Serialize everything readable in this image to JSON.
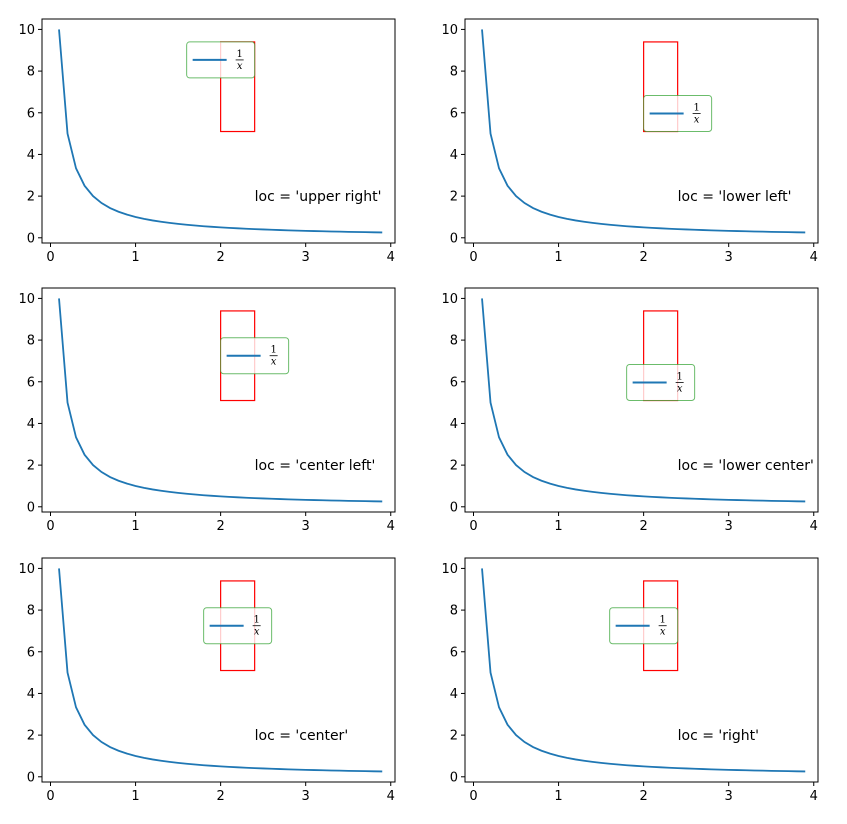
{
  "chart_data": [
    {
      "type": "line",
      "annotation": "loc = 'upper right'",
      "legend_label": "1/x",
      "legend_loc": "upper right",
      "xlim": [
        -0.1,
        4.05
      ],
      "ylim": [
        -0.25,
        10.5
      ],
      "xticks": [
        "0",
        "1",
        "2",
        "3",
        "4"
      ],
      "yticks": [
        "0",
        "2",
        "4",
        "6",
        "8",
        "10"
      ],
      "bbox_rect": {
        "x": [
          2.0,
          2.4
        ],
        "y": [
          5.1,
          9.4
        ]
      },
      "series": [
        {
          "x_start": 0.1,
          "x_end": 3.9,
          "x_step": 0.1,
          "function": "1/x",
          "color": "#1f77b4"
        }
      ],
      "annotation_pos": {
        "x": 2.4,
        "y": 2.0
      }
    },
    {
      "type": "line",
      "annotation": "loc = 'lower left'",
      "legend_label": "1/x",
      "legend_loc": "lower left",
      "xlim": [
        -0.1,
        4.05
      ],
      "ylim": [
        -0.25,
        10.5
      ],
      "xticks": [
        "0",
        "1",
        "2",
        "3",
        "4"
      ],
      "yticks": [
        "0",
        "2",
        "4",
        "6",
        "8",
        "10"
      ],
      "bbox_rect": {
        "x": [
          2.0,
          2.4
        ],
        "y": [
          5.1,
          9.4
        ]
      },
      "series": [
        {
          "x_start": 0.1,
          "x_end": 3.9,
          "x_step": 0.1,
          "function": "1/x",
          "color": "#1f77b4"
        }
      ],
      "annotation_pos": {
        "x": 2.4,
        "y": 2.0
      }
    },
    {
      "type": "line",
      "annotation": "loc = 'center left'",
      "legend_label": "1/x",
      "legend_loc": "center left",
      "xlim": [
        -0.1,
        4.05
      ],
      "ylim": [
        -0.25,
        10.5
      ],
      "xticks": [
        "0",
        "1",
        "2",
        "3",
        "4"
      ],
      "yticks": [
        "0",
        "2",
        "4",
        "6",
        "8",
        "10"
      ],
      "bbox_rect": {
        "x": [
          2.0,
          2.4
        ],
        "y": [
          5.1,
          9.4
        ]
      },
      "series": [
        {
          "x_start": 0.1,
          "x_end": 3.9,
          "x_step": 0.1,
          "function": "1/x",
          "color": "#1f77b4"
        }
      ],
      "annotation_pos": {
        "x": 2.4,
        "y": 2.0
      }
    },
    {
      "type": "line",
      "annotation": "loc = 'lower center'",
      "legend_label": "1/x",
      "legend_loc": "lower center",
      "xlim": [
        -0.1,
        4.05
      ],
      "ylim": [
        -0.25,
        10.5
      ],
      "xticks": [
        "0",
        "1",
        "2",
        "3",
        "4"
      ],
      "yticks": [
        "0",
        "2",
        "4",
        "6",
        "8",
        "10"
      ],
      "bbox_rect": {
        "x": [
          2.0,
          2.4
        ],
        "y": [
          5.1,
          9.4
        ]
      },
      "series": [
        {
          "x_start": 0.1,
          "x_end": 3.9,
          "x_step": 0.1,
          "function": "1/x",
          "color": "#1f77b4"
        }
      ],
      "annotation_pos": {
        "x": 2.4,
        "y": 2.0
      }
    },
    {
      "type": "line",
      "annotation": "loc = 'center'",
      "legend_label": "1/x",
      "legend_loc": "center",
      "xlim": [
        -0.1,
        4.05
      ],
      "ylim": [
        -0.25,
        10.5
      ],
      "xticks": [
        "0",
        "1",
        "2",
        "3",
        "4"
      ],
      "yticks": [
        "0",
        "2",
        "4",
        "6",
        "8",
        "10"
      ],
      "bbox_rect": {
        "x": [
          2.0,
          2.4
        ],
        "y": [
          5.1,
          9.4
        ]
      },
      "series": [
        {
          "x_start": 0.1,
          "x_end": 3.9,
          "x_step": 0.1,
          "function": "1/x",
          "color": "#1f77b4"
        }
      ],
      "annotation_pos": {
        "x": 2.4,
        "y": 2.0
      }
    },
    {
      "type": "line",
      "annotation": "loc = 'right'",
      "legend_label": "1/x",
      "legend_loc": "right",
      "xlim": [
        -0.1,
        4.05
      ],
      "ylim": [
        -0.25,
        10.5
      ],
      "xticks": [
        "0",
        "1",
        "2",
        "3",
        "4"
      ],
      "yticks": [
        "0",
        "2",
        "4",
        "6",
        "8",
        "10"
      ],
      "bbox_rect": {
        "x": [
          2.0,
          2.4
        ],
        "y": [
          5.1,
          9.4
        ]
      },
      "series": [
        {
          "x_start": 0.1,
          "x_end": 3.9,
          "x_step": 0.1,
          "function": "1/x",
          "color": "#1f77b4"
        }
      ],
      "annotation_pos": {
        "x": 2.4,
        "y": 2.0
      }
    }
  ],
  "colors": {
    "line": "#1f77b4",
    "bbox": "#ff0000",
    "legend_frame": "#2ca02c"
  }
}
